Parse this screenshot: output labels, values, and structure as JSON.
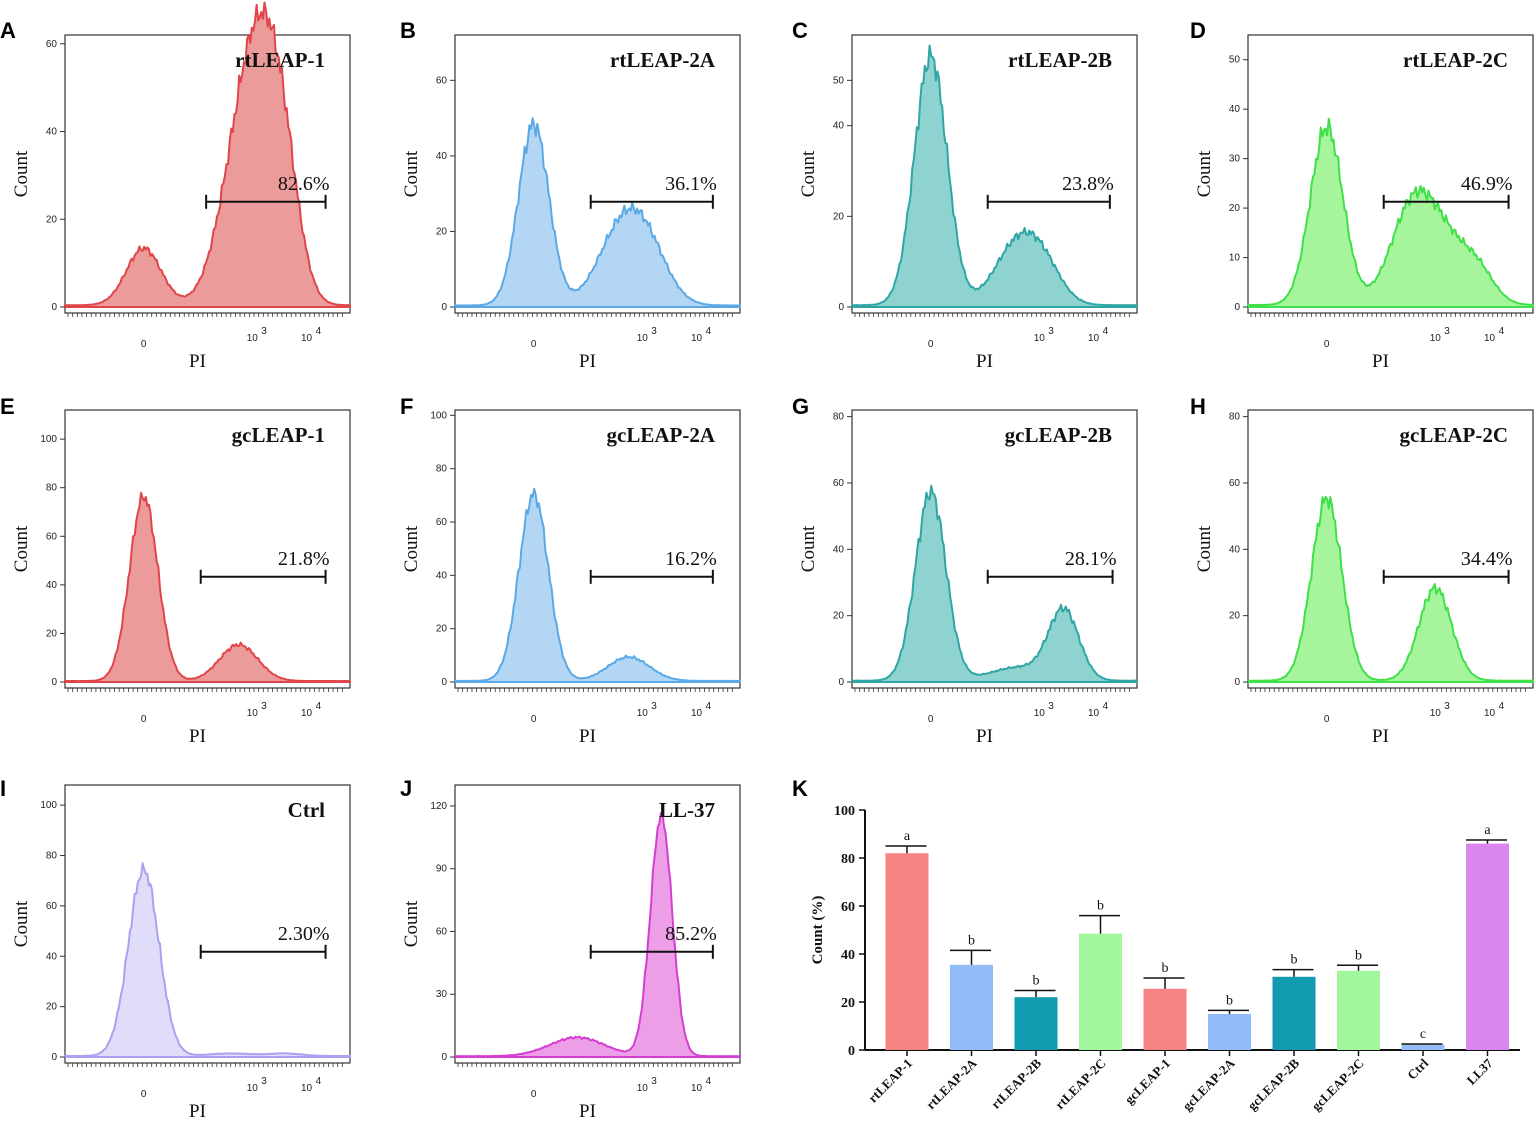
{
  "figure_panels": {
    "flow_panels": [
      {
        "letter": "A",
        "title": "rtLEAP-1",
        "percent": "82.6%",
        "color": "#e0454a",
        "fill": "#ec9b9b",
        "ylabel": "Count",
        "xlabel": "PI",
        "yticks": [
          "0",
          "20",
          "40",
          "60"
        ],
        "ymax": 62,
        "xticks": [
          "0",
          "10",
          "10"
        ],
        "xtick_sup": [
          "",
          "3",
          "4"
        ],
        "peaks": [
          {
            "x": 0,
            "h": 13,
            "w": 0.32
          },
          {
            "x": 1.85,
            "h": 38,
            "w": 0.42
          },
          {
            "x": 2.25,
            "h": 32,
            "w": 0.35
          },
          {
            "x": 2.6,
            "h": 20,
            "w": 0.3
          }
        ],
        "gate": [
          1.15,
          3.35
        ]
      },
      {
        "letter": "B",
        "title": "rtLEAP-2A",
        "percent": "36.1%",
        "color": "#5aa9e6",
        "fill": "#b4d6f5",
        "ylabel": "Count",
        "xlabel": "PI",
        "yticks": [
          "0",
          "20",
          "40",
          "60"
        ],
        "ymax": 72,
        "xticks": [
          "0",
          "10",
          "10"
        ],
        "xtick_sup": [
          "",
          "3",
          "4"
        ],
        "peaks": [
          {
            "x": 0,
            "h": 48,
            "w": 0.28
          },
          {
            "x": 1.55,
            "h": 16,
            "w": 0.42
          },
          {
            "x": 2.05,
            "h": 15,
            "w": 0.4
          }
        ],
        "gate": [
          1.05,
          3.3
        ]
      },
      {
        "letter": "C",
        "title": "rtLEAP-2B",
        "percent": "23.8%",
        "color": "#2fa6a6",
        "fill": "#8fd3d0",
        "ylabel": "Count",
        "xlabel": "PI",
        "yticks": [
          "0",
          "20",
          "40",
          "50"
        ],
        "ymax": 60,
        "xticks": [
          "0",
          "10",
          "10"
        ],
        "xtick_sup": [
          "",
          "3",
          "4"
        ],
        "peaks": [
          {
            "x": 0,
            "h": 55,
            "w": 0.3
          },
          {
            "x": 1.55,
            "h": 12,
            "w": 0.4
          },
          {
            "x": 2.05,
            "h": 8,
            "w": 0.35
          }
        ],
        "gate": [
          1.05,
          3.3
        ]
      },
      {
        "letter": "D",
        "title": "rtLEAP-2C",
        "percent": "46.9%",
        "color": "#3fe04a",
        "fill": "#a6f59c",
        "ylabel": "Count",
        "xlabel": "PI",
        "yticks": [
          "0",
          "10",
          "20",
          "30",
          "40",
          "50"
        ],
        "ymax": 55,
        "xticks": [
          "0",
          "10",
          "10"
        ],
        "xtick_sup": [
          "",
          "3",
          "4"
        ],
        "peaks": [
          {
            "x": 0,
            "h": 36,
            "w": 0.3
          },
          {
            "x": 1.55,
            "h": 17,
            "w": 0.4
          },
          {
            "x": 2.15,
            "h": 12,
            "w": 0.45
          },
          {
            "x": 2.8,
            "h": 5,
            "w": 0.3
          }
        ],
        "gate": [
          1.05,
          3.35
        ]
      },
      {
        "letter": "E",
        "title": "gcLEAP-1",
        "percent": "21.8%",
        "color": "#e0454a",
        "fill": "#ec9b9b",
        "ylabel": "Count",
        "xlabel": "PI",
        "yticks": [
          "0",
          "20",
          "40",
          "60",
          "80",
          "100"
        ],
        "ymax": 112,
        "xticks": [
          "0",
          "10",
          "10"
        ],
        "xtick_sup": [
          "",
          "3",
          "4"
        ],
        "peaks": [
          {
            "x": 0,
            "h": 76,
            "w": 0.26
          },
          {
            "x": 1.75,
            "h": 15,
            "w": 0.35
          }
        ],
        "gate": [
          1.05,
          3.35
        ]
      },
      {
        "letter": "F",
        "title": "gcLEAP-2A",
        "percent": "16.2%",
        "color": "#5aa9e6",
        "fill": "#b4d6f5",
        "ylabel": "Count",
        "xlabel": "PI",
        "yticks": [
          "0",
          "20",
          "40",
          "60",
          "80",
          "100"
        ],
        "ymax": 102,
        "xticks": [
          "0",
          "10",
          "10"
        ],
        "xtick_sup": [
          "",
          "3",
          "4"
        ],
        "peaks": [
          {
            "x": 0,
            "h": 70,
            "w": 0.27
          },
          {
            "x": 1.75,
            "h": 9,
            "w": 0.38
          }
        ],
        "gate": [
          1.05,
          3.3
        ]
      },
      {
        "letter": "G",
        "title": "gcLEAP-2B",
        "percent": "28.1%",
        "color": "#2fa6a6",
        "fill": "#8fd3d0",
        "ylabel": "Count",
        "xlabel": "PI",
        "yticks": [
          "0",
          "20",
          "40",
          "60",
          "80"
        ],
        "ymax": 82,
        "xticks": [
          "0",
          "10",
          "10"
        ],
        "xtick_sup": [
          "",
          "3",
          "4"
        ],
        "peaks": [
          {
            "x": 0,
            "h": 57,
            "w": 0.28
          },
          {
            "x": 1.6,
            "h": 4,
            "w": 0.5
          },
          {
            "x": 2.45,
            "h": 21,
            "w": 0.28
          }
        ],
        "gate": [
          1.05,
          3.35
        ]
      },
      {
        "letter": "H",
        "title": "gcLEAP-2C",
        "percent": "34.4%",
        "color": "#3fe04a",
        "fill": "#a6f59c",
        "ylabel": "Count",
        "xlabel": "PI",
        "yticks": [
          "0",
          "20",
          "40",
          "60",
          "80"
        ],
        "ymax": 82,
        "xticks": [
          "0",
          "10",
          "10"
        ],
        "xtick_sup": [
          "",
          "3",
          "4"
        ],
        "peaks": [
          {
            "x": 0,
            "h": 55,
            "w": 0.28
          },
          {
            "x": 2.0,
            "h": 28,
            "w": 0.3
          }
        ],
        "gate": [
          1.05,
          3.35
        ]
      },
      {
        "letter": "I",
        "title": "Ctrl",
        "percent": "2.30%",
        "color": "#a9a2ee",
        "fill": "#e0ddfb",
        "ylabel": "Count",
        "xlabel": "PI",
        "yticks": [
          "0",
          "20",
          "40",
          "60",
          "80",
          "100"
        ],
        "ymax": 108,
        "xticks": [
          "0",
          "10",
          "10"
        ],
        "xtick_sup": [
          "",
          "3",
          "4"
        ],
        "peaks": [
          {
            "x": 0,
            "h": 74,
            "w": 0.28
          },
          {
            "x": 1.6,
            "h": 1,
            "w": 0.4
          },
          {
            "x": 2.6,
            "h": 1,
            "w": 0.3
          }
        ],
        "gate": [
          1.05,
          3.35
        ]
      },
      {
        "letter": "J",
        "title": "LL-37",
        "percent": "85.2%",
        "color": "#d43fd0",
        "fill": "#ec9fe6",
        "ylabel": "Count",
        "xlabel": "PI",
        "yticks": [
          "0",
          "30",
          "60",
          "90",
          "120"
        ],
        "ymax": 130,
        "xticks": [
          "0",
          "10",
          "10"
        ],
        "xtick_sup": [
          "",
          "3",
          "4"
        ],
        "peaks": [
          {
            "x": 0.8,
            "h": 9,
            "w": 0.5
          },
          {
            "x": 2.35,
            "h": 115,
            "w": 0.2
          }
        ],
        "gate": [
          1.05,
          3.3
        ]
      }
    ],
    "bar_panel": {
      "letter": "K"
    }
  },
  "chart_data": {
    "type": "bar",
    "categories": [
      "rtLEAP-1",
      "rtLEAP-2A",
      "rtLEAP-2B",
      "rtLEAP-2C",
      "gcLEAP-1",
      "gcLEAP-2A",
      "gcLEAP-2B",
      "gcLEAP-2C",
      "Ctrl",
      "LL37"
    ],
    "values": [
      82,
      35.5,
      22,
      48.5,
      25.5,
      15,
      30.5,
      33,
      2.2,
      86
    ],
    "errors": [
      3,
      6,
      2.8,
      7.5,
      4.5,
      1.5,
      3,
      2.3,
      0.3,
      1.5
    ],
    "significance": [
      "a",
      "b",
      "b",
      "b",
      "b",
      "b",
      "b",
      "b",
      "c",
      "a"
    ],
    "colors": [
      "#f78383",
      "#92bcf7",
      "#119ab0",
      "#a2f79c",
      "#f78383",
      "#92bcf7",
      "#119ab0",
      "#a2f79c",
      "#92bcf7",
      "#da86ee"
    ],
    "title": "",
    "xlabel": "",
    "ylabel": "Count (%)",
    "ylim": [
      0,
      100
    ],
    "yticks": [
      "0",
      "20",
      "40",
      "60",
      "80",
      "100"
    ]
  }
}
